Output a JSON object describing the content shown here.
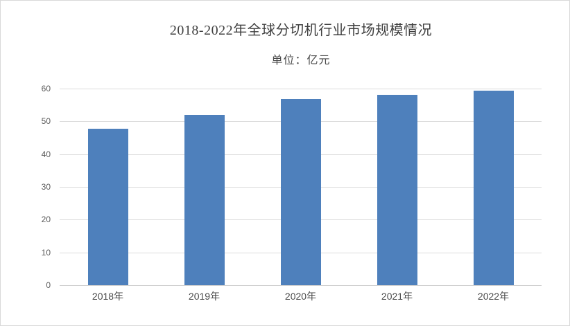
{
  "colors": {
    "bar": "#4E80BC",
    "gridline": "#DCDCDC",
    "axis_line": "#D0D0D0",
    "y_tick_label": "#595959",
    "x_tick_label": "#4A4A4A",
    "title_text": "#3F3F3F",
    "subtitle_text": "#4A4A4A",
    "canvas_border": "#D9D9D9"
  },
  "chart_data": {
    "type": "bar",
    "title": "2018-2022年全球分切机行业市场规模情况",
    "subtitle": "单位：亿元",
    "categories": [
      "2018年",
      "2019年",
      "2020年",
      "2021年",
      "2022年"
    ],
    "values": [
      47.8,
      52.0,
      56.8,
      58.2,
      59.3
    ],
    "xlabel": "",
    "ylabel": "",
    "ylim": [
      0,
      60
    ],
    "yticks": [
      0,
      10,
      20,
      30,
      40,
      50,
      60
    ],
    "grid": true,
    "gridlines": "horizontal",
    "legend": false,
    "bar_color": "#4E80BC"
  }
}
